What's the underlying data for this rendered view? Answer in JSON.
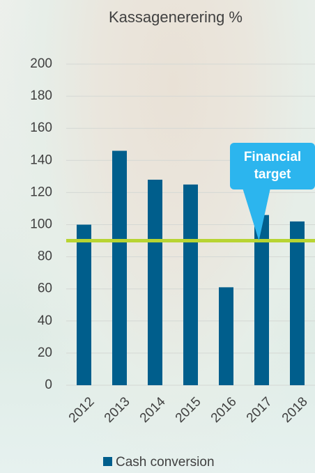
{
  "chart_data": {
    "type": "bar",
    "title": "Kassagenerering %",
    "categories": [
      "2012",
      "2013",
      "2014",
      "2015",
      "2016",
      "2017",
      "2018"
    ],
    "series": [
      {
        "name": "Cash conversion",
        "color": "#005e8c",
        "values": [
          100,
          146,
          128,
          125,
          61,
          106,
          102
        ]
      }
    ],
    "ylim": [
      0,
      200
    ],
    "yticks": [
      0,
      20,
      40,
      60,
      80,
      100,
      120,
      140,
      160,
      180,
      200
    ],
    "grid": true,
    "target_line": {
      "value": 90,
      "color": "#b8d432"
    },
    "annotation": "Financial target",
    "legend": "bottom"
  }
}
